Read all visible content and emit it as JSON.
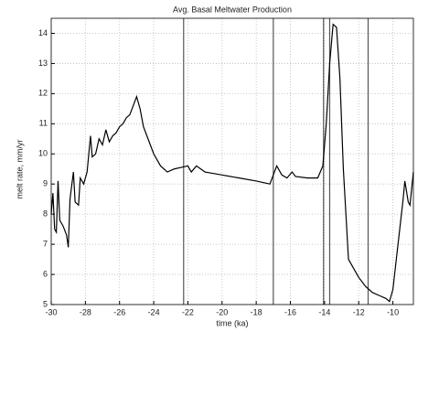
{
  "chart_data": {
    "type": "line",
    "title": "Avg. Basal Meltwater Production",
    "xlabel": "time (ka)",
    "ylabel": "melt rate, mm/yr",
    "x": [
      -30,
      -29.9,
      -29.8,
      -29.7,
      -29.6,
      -29.5,
      -29.3,
      -29.1,
      -29.0,
      -28.9,
      -28.7,
      -28.6,
      -28.4,
      -28.3,
      -28.1,
      -27.9,
      -27.7,
      -27.6,
      -27.4,
      -27.2,
      -27.0,
      -26.8,
      -26.6,
      -26.4,
      -26.2,
      -26.0,
      -25.8,
      -25.6,
      -25.4,
      -25.2,
      -25.0,
      -24.8,
      -24.6,
      -24.4,
      -24.2,
      -24.0,
      -23.6,
      -23.2,
      -22.8,
      -22.4,
      -22.0,
      -21.8,
      -21.5,
      -21,
      -20,
      -19,
      -18,
      -17.2,
      -16.8,
      -16.5,
      -16.2,
      -15.9,
      -15.7,
      -15,
      -14.4,
      -14.1,
      -13.9,
      -13.7,
      -13.5,
      -13.3,
      -13.1,
      -12.9,
      -12.7,
      -12.6,
      -12.3,
      -12.0,
      -11.6,
      -11.2,
      -10.8,
      -10.4,
      -10.2,
      -10.0,
      -9.8,
      -9.6,
      -9.4,
      -9.3,
      -9.1,
      -9.0,
      -8.8
    ],
    "series": [
      {
        "name": "melt rate",
        "color": "#000000",
        "values": [
          8.0,
          8.7,
          7.5,
          7.4,
          9.1,
          7.8,
          7.6,
          7.3,
          6.9,
          8.5,
          9.4,
          8.4,
          8.3,
          9.2,
          9.0,
          9.4,
          10.6,
          9.9,
          10.0,
          10.5,
          10.3,
          10.8,
          10.4,
          10.6,
          10.7,
          10.9,
          11.0,
          11.2,
          11.3,
          11.6,
          11.9,
          11.5,
          10.9,
          10.6,
          10.3,
          10.0,
          9.6,
          9.4,
          9.5,
          9.55,
          9.6,
          9.4,
          9.6,
          9.4,
          9.3,
          9.2,
          9.1,
          9.0,
          9.6,
          9.3,
          9.2,
          9.4,
          9.25,
          9.2,
          9.2,
          9.6,
          11,
          13,
          14.3,
          14.2,
          12.5,
          9.5,
          7.5,
          6.5,
          6.2,
          5.9,
          5.6,
          5.4,
          5.3,
          5.2,
          5.1,
          5.5,
          6.5,
          7.5,
          8.5,
          9.1,
          8.4,
          8.3,
          9.4
        ]
      }
    ],
    "vlines": [
      -22.25,
      -17.0,
      -14.06,
      -13.7,
      -11.45
    ],
    "xlim": [
      -30,
      -8.8
    ],
    "ylim": [
      5,
      14.5
    ],
    "xticks": [
      -30,
      -28,
      -26,
      -24,
      -22,
      -20,
      -18,
      -16,
      -14,
      -12,
      -10
    ],
    "yticks": [
      5,
      6,
      7,
      8,
      9,
      10,
      11,
      12,
      13,
      14
    ],
    "grid": true
  }
}
